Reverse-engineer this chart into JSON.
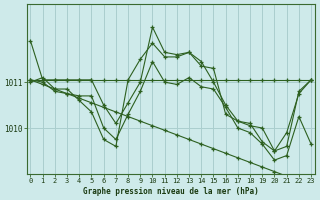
{
  "title": "Graphe pression niveau de la mer (hPa)",
  "bg_color": "#ceeaea",
  "grid_color": "#aacece",
  "line_color": "#2d6020",
  "marker_color": "#2d6020",
  "ylabel_ticks": [
    1010,
    1011
  ],
  "xlim": [
    -0.3,
    23.3
  ],
  "ylim": [
    1009.0,
    1012.7
  ],
  "series": [
    [
      1011.9,
      1011.05,
      1011.05,
      1011.05,
      1011.05,
      1011.05,
      1010.5,
      1010.1,
      1010.55,
      1011.0,
      1012.2,
      1011.65,
      1011.6,
      1011.65,
      1011.35,
      1011.3,
      1010.3,
      1010.15,
      1010.1,
      1009.7,
      1009.5,
      1009.9,
      1010.75,
      1011.05
    ],
    [
      1011.0,
      1011.1,
      1010.85,
      1010.85,
      1010.6,
      1010.35,
      1009.75,
      1009.6,
      1011.05,
      1011.5,
      1011.85,
      1011.55,
      1011.55,
      1011.65,
      1011.45,
      1011.0,
      1010.5,
      1010.15,
      1010.05,
      1010.0,
      1009.5,
      1009.6,
      1010.8,
      1011.05
    ],
    [
      1011.05,
      1011.0,
      1010.8,
      1010.75,
      1010.7,
      1010.7,
      1010.0,
      1009.75,
      1010.3,
      1010.8,
      1011.45,
      1011.0,
      1010.95,
      1011.1,
      1010.9,
      1010.85,
      1010.45,
      1010.0,
      1009.9,
      1009.65,
      1009.3,
      1009.4,
      1010.25,
      1009.65
    ],
    [
      1011.05,
      1011.05,
      1011.05,
      1011.05,
      1011.05,
      1011.05,
      1011.05,
      1011.05,
      1011.05,
      1011.05,
      1011.05,
      1011.05,
      1011.05,
      1011.05,
      1011.05,
      1011.05,
      1011.05,
      1011.05,
      1011.05,
      1011.05,
      1011.05,
      1011.05,
      1011.05,
      1011.05
    ],
    [
      1011.05,
      1010.95,
      1010.85,
      1010.75,
      1010.65,
      1010.55,
      1010.45,
      1010.35,
      1010.25,
      1010.15,
      1010.05,
      1009.95,
      1009.85,
      1009.75,
      1009.65,
      1009.55,
      1009.45,
      1009.35,
      1009.25,
      1009.15,
      1009.05,
      1008.95,
      1008.85,
      1008.75
    ]
  ],
  "xtick_labels": [
    "0",
    "1",
    "2",
    "3",
    "4",
    "5",
    "6",
    "7",
    "8",
    "9",
    "10",
    "11",
    "12",
    "13",
    "14",
    "15",
    "16",
    "17",
    "18",
    "19",
    "20",
    "21",
    "22",
    "23"
  ]
}
